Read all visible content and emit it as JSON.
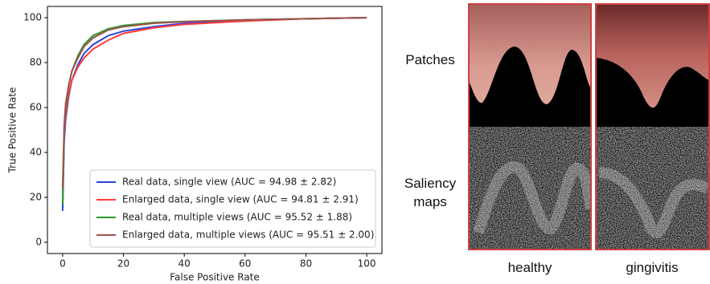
{
  "chart_data": {
    "type": "line",
    "xlabel": "False Positive Rate",
    "ylabel": "True Positive Rate",
    "x": [
      0,
      0.5,
      1,
      2,
      3,
      5,
      7,
      10,
      15,
      20,
      30,
      40,
      60,
      80,
      100
    ],
    "series": [
      {
        "name": "Real data, single view (AUC = 94.98 ± 2.82)",
        "color": "#2a45e0",
        "values": [
          14,
          45,
          55,
          65,
          72,
          79,
          84,
          88,
          92,
          94,
          96,
          97.5,
          99,
          99.5,
          100
        ]
      },
      {
        "name": "Enlarged data, single view (AUC = 94.81 ± 2.91)",
        "color": "#ff3a3a",
        "values": [
          22,
          48,
          57,
          66,
          72,
          78,
          82,
          86,
          90,
          93,
          95.5,
          97,
          98.5,
          99.5,
          100
        ]
      },
      {
        "name": "Real data, multiple views (AUC = 95.52 ± 1.88)",
        "color": "#2e9a2e",
        "values": [
          17,
          50,
          60,
          70,
          76,
          83,
          88,
          92,
          95,
          96.5,
          97.8,
          98.3,
          99,
          99.5,
          100
        ]
      },
      {
        "name": "Enlarged data, multiple views (AUC = 95.51 ± 2.00)",
        "color": "#a0524f",
        "values": [
          24,
          52,
          62,
          70,
          76,
          82,
          87,
          91,
          94.5,
          96,
          97.5,
          98.2,
          99,
          99.5,
          100
        ]
      }
    ],
    "xlim": [
      -5,
      105
    ],
    "ylim": [
      -5,
      105
    ],
    "xticks": [
      0,
      20,
      40,
      60,
      80,
      100
    ],
    "yticks": [
      0,
      20,
      40,
      60,
      80,
      100
    ],
    "legend": "lower right"
  },
  "figure": {
    "row_labels": [
      "Patches",
      "Saliency maps"
    ],
    "column_labels": [
      "healthy",
      "gingivitis"
    ]
  }
}
